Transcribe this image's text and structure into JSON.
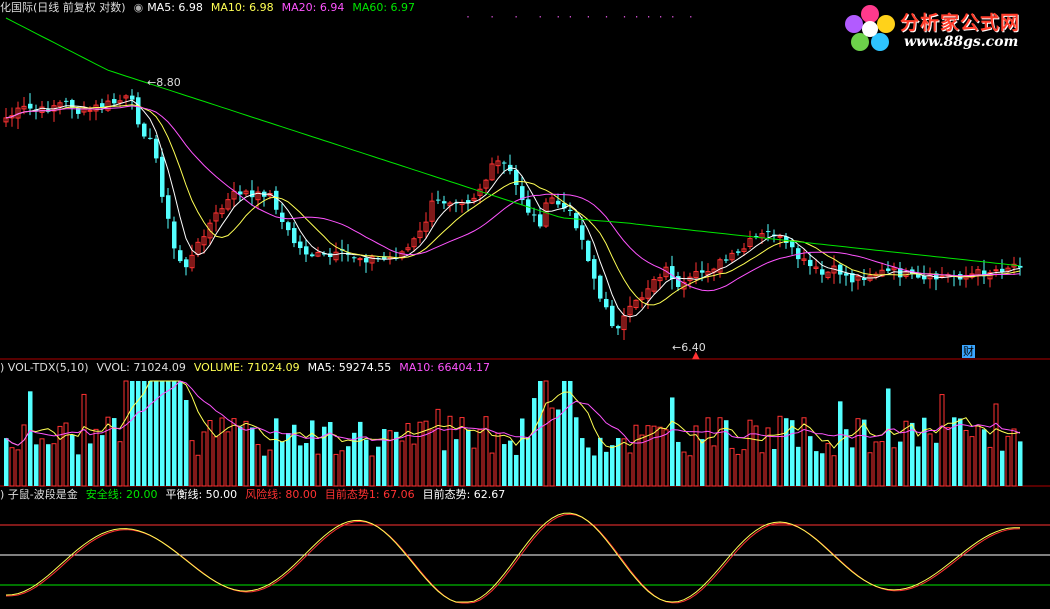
{
  "main_header": {
    "title": "化国际(日线 前复权 对数)",
    "ma5": "MA5: 6.98",
    "ma10": "MA10: 6.98",
    "ma20": "MA20: 6.94",
    "ma60": "MA60: 6.97"
  },
  "vol_header": {
    "name": "VOL-TDX(5,10)",
    "vvol": "VVOL: 71024.09",
    "volume": "VOLUME: 71024.09",
    "ma5": "MA5: 59274.55",
    "ma10": "MA10: 66404.17"
  },
  "ind_header": {
    "name": "子鼠-波段是金",
    "safe": "安全线: 20.00",
    "balance": "平衡线: 50.00",
    "risk": "风险线: 80.00",
    "trend1": "目前态势1: 67.06",
    "trend": "目前态势: 62.67"
  },
  "annotations": {
    "high_label": "8.80",
    "low_label": "6.40",
    "cai_badge": "财",
    "dots": "·   ·   ·   ·  · ·  ·  ·  · · · · ·  ·"
  },
  "logo": {
    "name": "分析家公式网",
    "url": "www.88gs.com"
  },
  "colors": {
    "up": "#ff3232",
    "down": "#54ffff",
    "ma5": "#ffffff",
    "ma10": "#ffff54",
    "ma20": "#ff54ff",
    "ma60": "#00e600",
    "separator": "#b00000"
  },
  "chart_data": [
    {
      "type": "candlestick",
      "series": [
        {
          "name": "MA5",
          "value": 6.98
        },
        {
          "name": "MA10",
          "value": 6.98
        },
        {
          "name": "MA20",
          "value": 6.94
        },
        {
          "name": "MA60",
          "value": 6.97
        }
      ],
      "annotations": [
        {
          "label": "8.80",
          "kind": "high"
        },
        {
          "label": "6.40",
          "kind": "low"
        }
      ],
      "ylim": [
        6.3,
        9.2
      ],
      "bars": 170
    },
    {
      "type": "bar",
      "series": [
        {
          "name": "VOLUME",
          "last": 71024.09
        },
        {
          "name": "MA5",
          "last": 59274.55
        },
        {
          "name": "MA10",
          "last": 66404.17
        }
      ]
    },
    {
      "type": "line",
      "series": [
        {
          "name": "目前态势1",
          "last": 67.06
        },
        {
          "name": "目前态势",
          "last": 62.67
        }
      ],
      "reference_lines": [
        {
          "name": "安全线",
          "value": 20
        },
        {
          "name": "平衡线",
          "value": 50
        },
        {
          "name": "风险线",
          "value": 80
        }
      ],
      "ylim": [
        0,
        100
      ]
    }
  ]
}
